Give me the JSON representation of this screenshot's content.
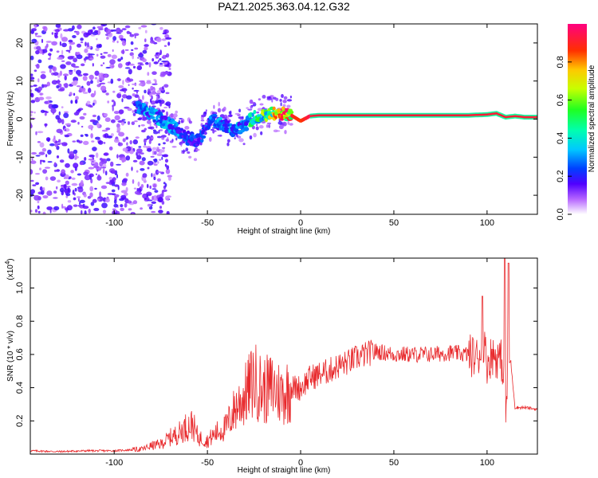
{
  "title": "PAZ1.2025.363.04.12.G32",
  "chart_data": [
    {
      "type": "heatmap",
      "name": "spectrogram",
      "xlabel": "Height of straight line (km)",
      "ylabel": "Frequency (Hz)",
      "xlim": [
        -145,
        127
      ],
      "ylim": [
        -25,
        25
      ],
      "xticks": [
        -100,
        -50,
        0,
        50,
        100
      ],
      "xtick_labels": [
        "-100",
        "-50",
        "0",
        "50",
        "100"
      ],
      "yticks": [
        -20,
        -10,
        0,
        10,
        20
      ],
      "ytick_labels": [
        "-20",
        "-10",
        "0",
        "10",
        "20"
      ],
      "signal_track": {
        "x": [
          -88,
          -80,
          -70,
          -62,
          -55,
          -48,
          -42,
          -36,
          -30,
          -25,
          -20,
          -15,
          -10,
          -5,
          0,
          5,
          10,
          30,
          50,
          70,
          90,
          100,
          105,
          110,
          115,
          120,
          127
        ],
        "frequency": [
          3,
          1.5,
          -1.5,
          -4.5,
          -6,
          0,
          -1.5,
          -3,
          -1.5,
          0.5,
          1,
          1.5,
          1.5,
          1,
          -0.5,
          0.8,
          1,
          1,
          1,
          1,
          1,
          1.2,
          1.5,
          0.5,
          0.8,
          0.5,
          0.5
        ],
        "amplitude": [
          0.25,
          0.3,
          0.3,
          0.25,
          0.2,
          0.25,
          0.3,
          0.3,
          0.3,
          0.45,
          0.55,
          0.65,
          0.8,
          0.9,
          0.85,
          0.95,
          0.95,
          0.95,
          0.95,
          0.95,
          0.95,
          0.9,
          0.8,
          0.6,
          0.7,
          0.85,
          0.9
        ]
      },
      "colorbar": {
        "label": "Normalized spectral amplitude",
        "range": [
          0,
          1
        ],
        "ticks": [
          0.0,
          0.2,
          0.4,
          0.6,
          0.8
        ],
        "tick_labels": [
          "0.0",
          "0.2",
          "0.4",
          "0.6",
          "0.8"
        ]
      }
    },
    {
      "type": "line",
      "name": "snr",
      "xlabel": "Height of straight line (km)",
      "ylabel": "SNR (10 * v/v)",
      "scale_label": "(x10",
      "scale_exponent": "4",
      "xlim": [
        -145,
        127
      ],
      "ylim": [
        0,
        1.18
      ],
      "xticks": [
        -100,
        -50,
        0,
        50,
        100
      ],
      "xtick_labels": [
        "-100",
        "-50",
        "0",
        "50",
        "100"
      ],
      "yticks": [
        0.2,
        0.4,
        0.6,
        0.8,
        1.0
      ],
      "ytick_labels": [
        "0.2",
        "0.4",
        "0.6",
        "0.8",
        "1.0"
      ],
      "color": "#e8282b",
      "series": [
        {
          "name": "SNR",
          "x": [
            -145,
            -130,
            -115,
            -100,
            -92,
            -85,
            -80,
            -75,
            -70,
            -66,
            -62,
            -58,
            -55,
            -50,
            -45,
            -40,
            -35,
            -30,
            -25,
            -20,
            -15,
            -10,
            -5,
            0,
            5,
            10,
            15,
            20,
            25,
            30,
            35,
            40,
            50,
            60,
            70,
            80,
            90,
            95,
            98,
            100,
            103,
            106,
            108,
            109,
            110,
            111,
            112,
            113,
            115,
            120,
            127
          ],
          "y": [
            0.02,
            0.015,
            0.02,
            0.02,
            0.025,
            0.03,
            0.05,
            0.06,
            0.1,
            0.12,
            0.16,
            0.18,
            0.1,
            0.08,
            0.13,
            0.16,
            0.28,
            0.35,
            0.45,
            0.38,
            0.4,
            0.36,
            0.4,
            0.4,
            0.46,
            0.48,
            0.5,
            0.53,
            0.55,
            0.58,
            0.6,
            0.62,
            0.6,
            0.6,
            0.6,
            0.61,
            0.6,
            0.58,
            0.68,
            0.55,
            0.6,
            0.58,
            0.56,
            0.42,
            0.14,
            0.5,
            0.55,
            0.52,
            0.28,
            0.28,
            0.27
          ]
        }
      ]
    }
  ],
  "colors": {
    "line": "#e8282b",
    "frame": "#000000"
  }
}
